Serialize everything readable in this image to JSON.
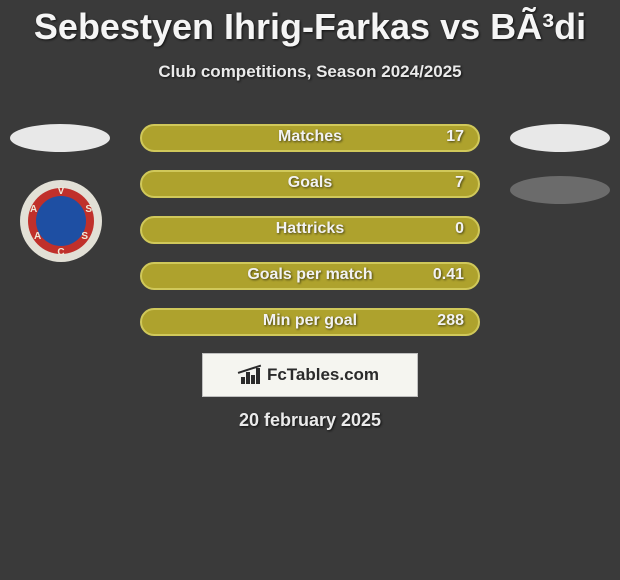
{
  "title": "Sebestyen Ihrig-Farkas vs BÃ³di",
  "subtitle": "Club competitions, Season 2024/2025",
  "date_text": "20 february 2025",
  "brand": "FcTables.com",
  "colors": {
    "background": "#3a3a3a",
    "bar_fill": "#aea22d",
    "bar_border": "#d0c85a",
    "chip_light": "#e8e8e8",
    "chip_dark": "#6b6b6b",
    "crest_outer": "#e2e0d6",
    "crest_red": "#c0302b",
    "crest_blue": "#1e4fa3",
    "text": "#f2f2f2",
    "badge_bg": "#f5f5f0",
    "badge_border": "#bfbfbf"
  },
  "crest_text": "VASASC",
  "stats": {
    "type": "bar",
    "rows": [
      {
        "label": "Matches",
        "value": "17"
      },
      {
        "label": "Goals",
        "value": "7"
      },
      {
        "label": "Hattricks",
        "value": "0"
      },
      {
        "label": "Goals per match",
        "value": "0.41"
      },
      {
        "label": "Min per goal",
        "value": "288"
      }
    ]
  }
}
